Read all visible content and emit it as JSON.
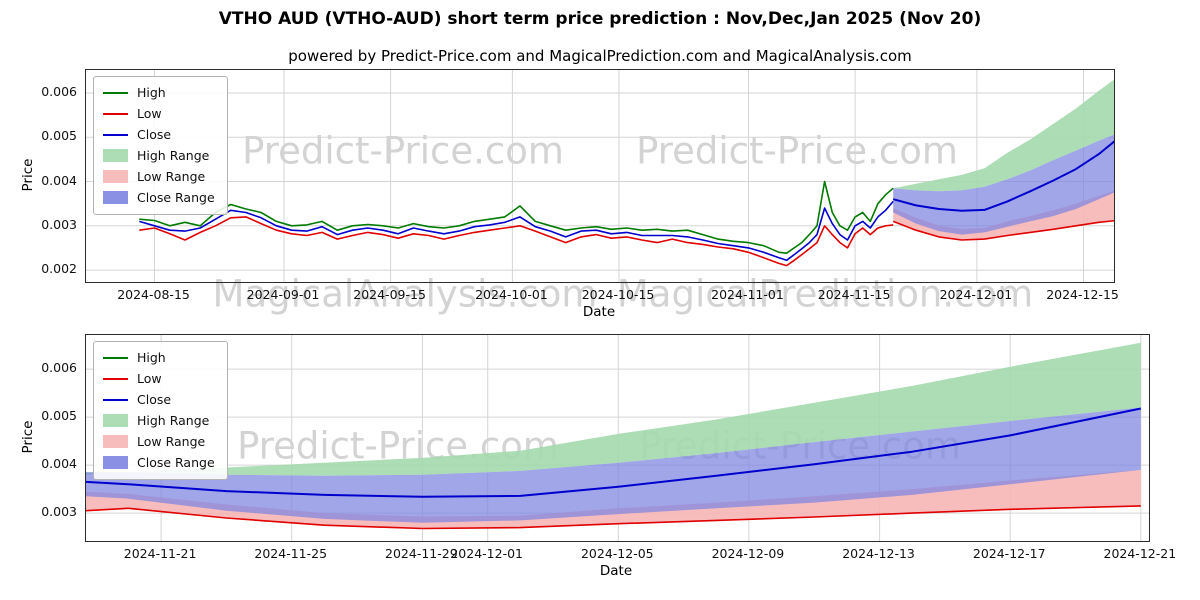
{
  "page": {
    "title": "VTHO AUD (VTHO-AUD) short term price prediction : Nov,Dec,Jan 2025 (Nov 20)",
    "subtitle": "powered by Predict-Price.com and MagicalPrediction.com and MagicalAnalysis.com"
  },
  "watermarks": {
    "top_left": "Predict-Price.com",
    "top_right": "Predict-Price.com",
    "mid_left": "MagicalAnalysis.com",
    "mid_right": "MagicalPrediction.com",
    "bottom_left": "Predict-Price.com",
    "bottom_right": "Predict-Price.com"
  },
  "legend": {
    "entries": [
      {
        "label": "High",
        "swatch": "line",
        "color": "#007a00"
      },
      {
        "label": "Low",
        "swatch": "line",
        "color": "#e00000"
      },
      {
        "label": "Close",
        "swatch": "line",
        "color": "#0000cd"
      },
      {
        "label": "High Range",
        "swatch": "patch",
        "color": "#a3d9ad"
      },
      {
        "label": "Low Range",
        "swatch": "patch",
        "color": "#f6b6b6"
      },
      {
        "label": "Close Range",
        "swatch": "patch",
        "color": "#7d84e0"
      }
    ]
  },
  "colors": {
    "high": "#007a00",
    "low": "#e00000",
    "close": "#0000cd",
    "high_range": "#a3d9ad",
    "low_range": "#f6b6b6",
    "close_range": "#7d84e0",
    "grid": "#d5d5d5"
  },
  "chart_data": [
    {
      "name": "history-and-forecast-chart",
      "type": "line",
      "xlabel": "Date",
      "ylabel": "Price",
      "x_epoch": "2024-08-13",
      "xlim_days": [
        -7,
        128
      ],
      "ylim": [
        0.00173,
        0.00652
      ],
      "grid": true,
      "legend_position": "upper-left",
      "x_ticks": [
        {
          "label": "2024-08-15",
          "day": 2
        },
        {
          "label": "2024-09-01",
          "day": 19
        },
        {
          "label": "2024-09-15",
          "day": 33
        },
        {
          "label": "2024-10-01",
          "day": 49
        },
        {
          "label": "2024-10-15",
          "day": 63
        },
        {
          "label": "2024-11-01",
          "day": 80
        },
        {
          "label": "2024-11-15",
          "day": 94
        },
        {
          "label": "2024-12-01",
          "day": 110
        },
        {
          "label": "2024-12-15",
          "day": 124
        }
      ],
      "y_ticks": [
        {
          "label": "0.002",
          "value": 0.002
        },
        {
          "label": "0.003",
          "value": 0.003
        },
        {
          "label": "0.004",
          "value": 0.004
        },
        {
          "label": "0.005",
          "value": 0.005
        },
        {
          "label": "0.006",
          "value": 0.006
        }
      ],
      "history": {
        "days": [
          0,
          2,
          4,
          6,
          8,
          10,
          12,
          14,
          16,
          18,
          20,
          22,
          24,
          26,
          28,
          30,
          32,
          34,
          36,
          38,
          40,
          42,
          44,
          46,
          48,
          50,
          52,
          54,
          56,
          58,
          60,
          62,
          64,
          66,
          68,
          70,
          72,
          74,
          76,
          78,
          80,
          82,
          84,
          85,
          86,
          87,
          88,
          89,
          90,
          91,
          92,
          93,
          94,
          95,
          96,
          97,
          98,
          99
        ],
        "high": [
          0.00315,
          0.00312,
          0.003,
          0.00308,
          0.003,
          0.0033,
          0.00348,
          0.00338,
          0.0033,
          0.0031,
          0.003,
          0.00302,
          0.0031,
          0.0029,
          0.003,
          0.00303,
          0.003,
          0.00295,
          0.00305,
          0.00298,
          0.00295,
          0.003,
          0.0031,
          0.00315,
          0.0032,
          0.00345,
          0.0031,
          0.003,
          0.0029,
          0.00295,
          0.00298,
          0.00292,
          0.00295,
          0.0029,
          0.00292,
          0.00288,
          0.0029,
          0.0028,
          0.0027,
          0.00265,
          0.00262,
          0.00255,
          0.0024,
          0.00238,
          0.0025,
          0.00262,
          0.0028,
          0.003,
          0.004,
          0.0033,
          0.003,
          0.0029,
          0.0032,
          0.0033,
          0.0031,
          0.0035,
          0.0037,
          0.00385
        ],
        "low": [
          0.0029,
          0.00295,
          0.00282,
          0.00268,
          0.00285,
          0.003,
          0.00318,
          0.0032,
          0.00305,
          0.0029,
          0.00282,
          0.00278,
          0.00285,
          0.0027,
          0.00278,
          0.00285,
          0.0028,
          0.00272,
          0.00282,
          0.00278,
          0.0027,
          0.00278,
          0.00285,
          0.0029,
          0.00295,
          0.003,
          0.00288,
          0.00275,
          0.00262,
          0.00275,
          0.0028,
          0.00272,
          0.00275,
          0.00268,
          0.00262,
          0.0027,
          0.00262,
          0.00258,
          0.00252,
          0.00248,
          0.0024,
          0.00228,
          0.00215,
          0.0021,
          0.00222,
          0.00235,
          0.00248,
          0.00262,
          0.003,
          0.0028,
          0.00262,
          0.0025,
          0.00282,
          0.00295,
          0.0028,
          0.00295,
          0.003,
          0.00302
        ],
        "close": [
          0.0031,
          0.003,
          0.0029,
          0.00288,
          0.00295,
          0.00315,
          0.00335,
          0.0033,
          0.00318,
          0.003,
          0.0029,
          0.00288,
          0.00298,
          0.0028,
          0.0029,
          0.00295,
          0.0029,
          0.00282,
          0.00295,
          0.00288,
          0.00282,
          0.00288,
          0.00298,
          0.00302,
          0.00308,
          0.0032,
          0.00298,
          0.00288,
          0.00275,
          0.00288,
          0.0029,
          0.00282,
          0.00285,
          0.00278,
          0.00278,
          0.00278,
          0.00275,
          0.00268,
          0.0026,
          0.00255,
          0.0025,
          0.0024,
          0.00228,
          0.00222,
          0.00235,
          0.00248,
          0.00262,
          0.0028,
          0.0034,
          0.00305,
          0.0028,
          0.00268,
          0.003,
          0.0031,
          0.00295,
          0.0032,
          0.00335,
          0.00355
        ]
      },
      "forecast": {
        "days": [
          99,
          102,
          105,
          108,
          111,
          114,
          117,
          120,
          123,
          126,
          130
        ],
        "high_upper": [
          0.00385,
          0.00395,
          0.00405,
          0.00415,
          0.0043,
          0.00465,
          0.00495,
          0.0053,
          0.00565,
          0.00605,
          0.00655
        ],
        "close_upper": [
          0.00385,
          0.0038,
          0.00378,
          0.0038,
          0.00388,
          0.00405,
          0.00425,
          0.00448,
          0.0047,
          0.00492,
          0.0052
        ],
        "close_mid": [
          0.0036,
          0.00346,
          0.00338,
          0.00334,
          0.00336,
          0.00355,
          0.00378,
          0.00402,
          0.00428,
          0.00462,
          0.00518
        ],
        "close_lower": [
          0.0033,
          0.00305,
          0.00288,
          0.0028,
          0.00285,
          0.00298,
          0.0031,
          0.00322,
          0.00338,
          0.0036,
          0.0039
        ],
        "low_upper": [
          0.0034,
          0.00318,
          0.003,
          0.00293,
          0.00295,
          0.0031,
          0.00322,
          0.00335,
          0.0035,
          0.00368,
          0.0039
        ],
        "low_lower": [
          0.0031,
          0.0029,
          0.00275,
          0.00268,
          0.0027,
          0.00278,
          0.00285,
          0.00292,
          0.003,
          0.00308,
          0.00315
        ]
      }
    },
    {
      "name": "forecast-zoom-chart",
      "type": "line",
      "xlabel": "Date",
      "ylabel": "Price",
      "x_epoch": "2024-11-20",
      "xlim_days": [
        -1.3,
        31.25
      ],
      "ylim": [
        0.00242,
        0.00671
      ],
      "grid": true,
      "legend_position": "upper-left",
      "x_ticks": [
        {
          "label": "2024-11-21",
          "day": 1
        },
        {
          "label": "2024-11-25",
          "day": 5
        },
        {
          "label": "2024-11-29",
          "day": 9
        },
        {
          "label": "2024-12-01",
          "day": 11
        },
        {
          "label": "2024-12-05",
          "day": 15
        },
        {
          "label": "2024-12-09",
          "day": 19
        },
        {
          "label": "2024-12-13",
          "day": 23
        },
        {
          "label": "2024-12-17",
          "day": 27
        },
        {
          "label": "2024-12-21",
          "day": 31
        }
      ],
      "y_ticks": [
        {
          "label": "0.003",
          "value": 0.003
        },
        {
          "label": "0.004",
          "value": 0.004
        },
        {
          "label": "0.005",
          "value": 0.005
        },
        {
          "label": "0.006",
          "value": 0.006
        }
      ],
      "forecast": {
        "days": [
          -1.3,
          0,
          3,
          6,
          9,
          12,
          15,
          18,
          21,
          24,
          27,
          31
        ],
        "high_upper": [
          0.0038,
          0.00385,
          0.00395,
          0.00405,
          0.00415,
          0.0043,
          0.00465,
          0.00495,
          0.0053,
          0.00565,
          0.00605,
          0.00655
        ],
        "close_upper": [
          0.00385,
          0.00385,
          0.0038,
          0.00378,
          0.0038,
          0.00388,
          0.00405,
          0.00425,
          0.00448,
          0.0047,
          0.00492,
          0.0052
        ],
        "close_mid": [
          0.00365,
          0.0036,
          0.00346,
          0.00338,
          0.00334,
          0.00336,
          0.00355,
          0.00378,
          0.00402,
          0.00428,
          0.00462,
          0.00518
        ],
        "close_lower": [
          0.00335,
          0.0033,
          0.00305,
          0.00288,
          0.0028,
          0.00285,
          0.00298,
          0.0031,
          0.00322,
          0.00338,
          0.0036,
          0.0039
        ],
        "low_upper": [
          0.00345,
          0.0034,
          0.00318,
          0.003,
          0.00293,
          0.00295,
          0.0031,
          0.00322,
          0.00335,
          0.0035,
          0.00368,
          0.0039
        ],
        "low_lower": [
          0.00305,
          0.0031,
          0.0029,
          0.00275,
          0.00268,
          0.0027,
          0.00278,
          0.00285,
          0.00292,
          0.003,
          0.00308,
          0.00315
        ]
      }
    }
  ]
}
